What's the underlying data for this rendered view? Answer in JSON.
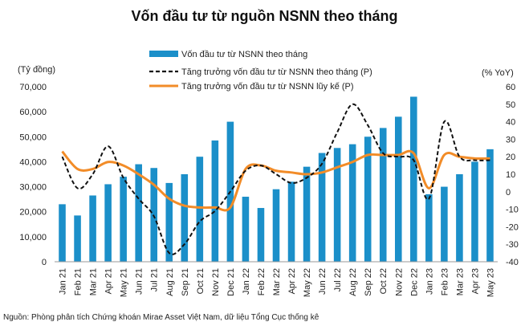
{
  "chart_data": {
    "type": "bar",
    "title": "Vốn đầu tư từ nguồn NSNN theo tháng",
    "y_left_label": "(Tỷ đồng)",
    "y_right_label": "(% YoY)",
    "ylim_left": [
      0,
      70000
    ],
    "ylim_right": [
      -40,
      60
    ],
    "yticks_left": [
      "0",
      "10,000",
      "20,000",
      "30,000",
      "40,000",
      "50,000",
      "60,000",
      "70,000"
    ],
    "yticks_right": [
      "-40",
      "-30",
      "-20",
      "-10",
      "0",
      "10",
      "20",
      "30",
      "40",
      "50",
      "60"
    ],
    "categories": [
      "Jan 21",
      "Feb 21",
      "Mar 21",
      "Apr 21",
      "May 21",
      "Jun 21",
      "Jul 21",
      "Aug 21",
      "Sep 21",
      "Oct 21",
      "Nov 21",
      "Dec 21",
      "Jan 22",
      "Feb 22",
      "Mar 22",
      "Apr 22",
      "May 22",
      "Jun 22",
      "Jul 22",
      "Aug 22",
      "Sep 22",
      "Oct 22",
      "Nov 22",
      "Dec 22",
      "Jan 23",
      "Feb 23",
      "Mar 23",
      "Apr 23",
      "May 23"
    ],
    "legend_position": "top",
    "series": [
      {
        "name": "Vốn đầu tư từ NSNN theo tháng",
        "kind": "bar",
        "axis": "left",
        "color": "#1b8fc9",
        "values": [
          23000,
          18500,
          26500,
          31000,
          34000,
          39000,
          37500,
          31500,
          35000,
          42000,
          48500,
          56000,
          26000,
          21500,
          29000,
          32000,
          38000,
          43500,
          45500,
          47000,
          50000,
          53500,
          58000,
          66000,
          27000,
          30000,
          35000,
          40000,
          45000
        ]
      },
      {
        "name": "Tăng trưởng vốn đầu tư từ NSNN theo tháng (P)",
        "kind": "dashed-line",
        "axis": "right",
        "color": "#111111",
        "values": [
          20,
          2,
          10,
          26,
          8,
          -4,
          -14,
          -35,
          -30,
          -17,
          -11,
          0,
          12,
          15,
          10,
          5,
          8,
          16,
          34,
          50,
          38,
          22,
          20,
          18,
          -4,
          40,
          20,
          18,
          18
        ]
      },
      {
        "name": "Tăng trưởng vốn đầu tư từ NSNN lũy kế (P)",
        "kind": "line",
        "axis": "right",
        "color": "#f28c28",
        "values": [
          23,
          13,
          13,
          17,
          15,
          10,
          4,
          -4,
          -8,
          -9,
          -9,
          -9,
          13,
          15,
          12,
          11,
          10,
          11,
          14,
          17,
          21,
          21,
          21,
          22,
          2,
          21,
          20,
          19,
          19
        ]
      }
    ]
  },
  "source_note": "Nguồn: Phòng phân tích Chứng khoán Mirae Asset Việt Nam, dữ liệu Tổng Cục thống kê"
}
